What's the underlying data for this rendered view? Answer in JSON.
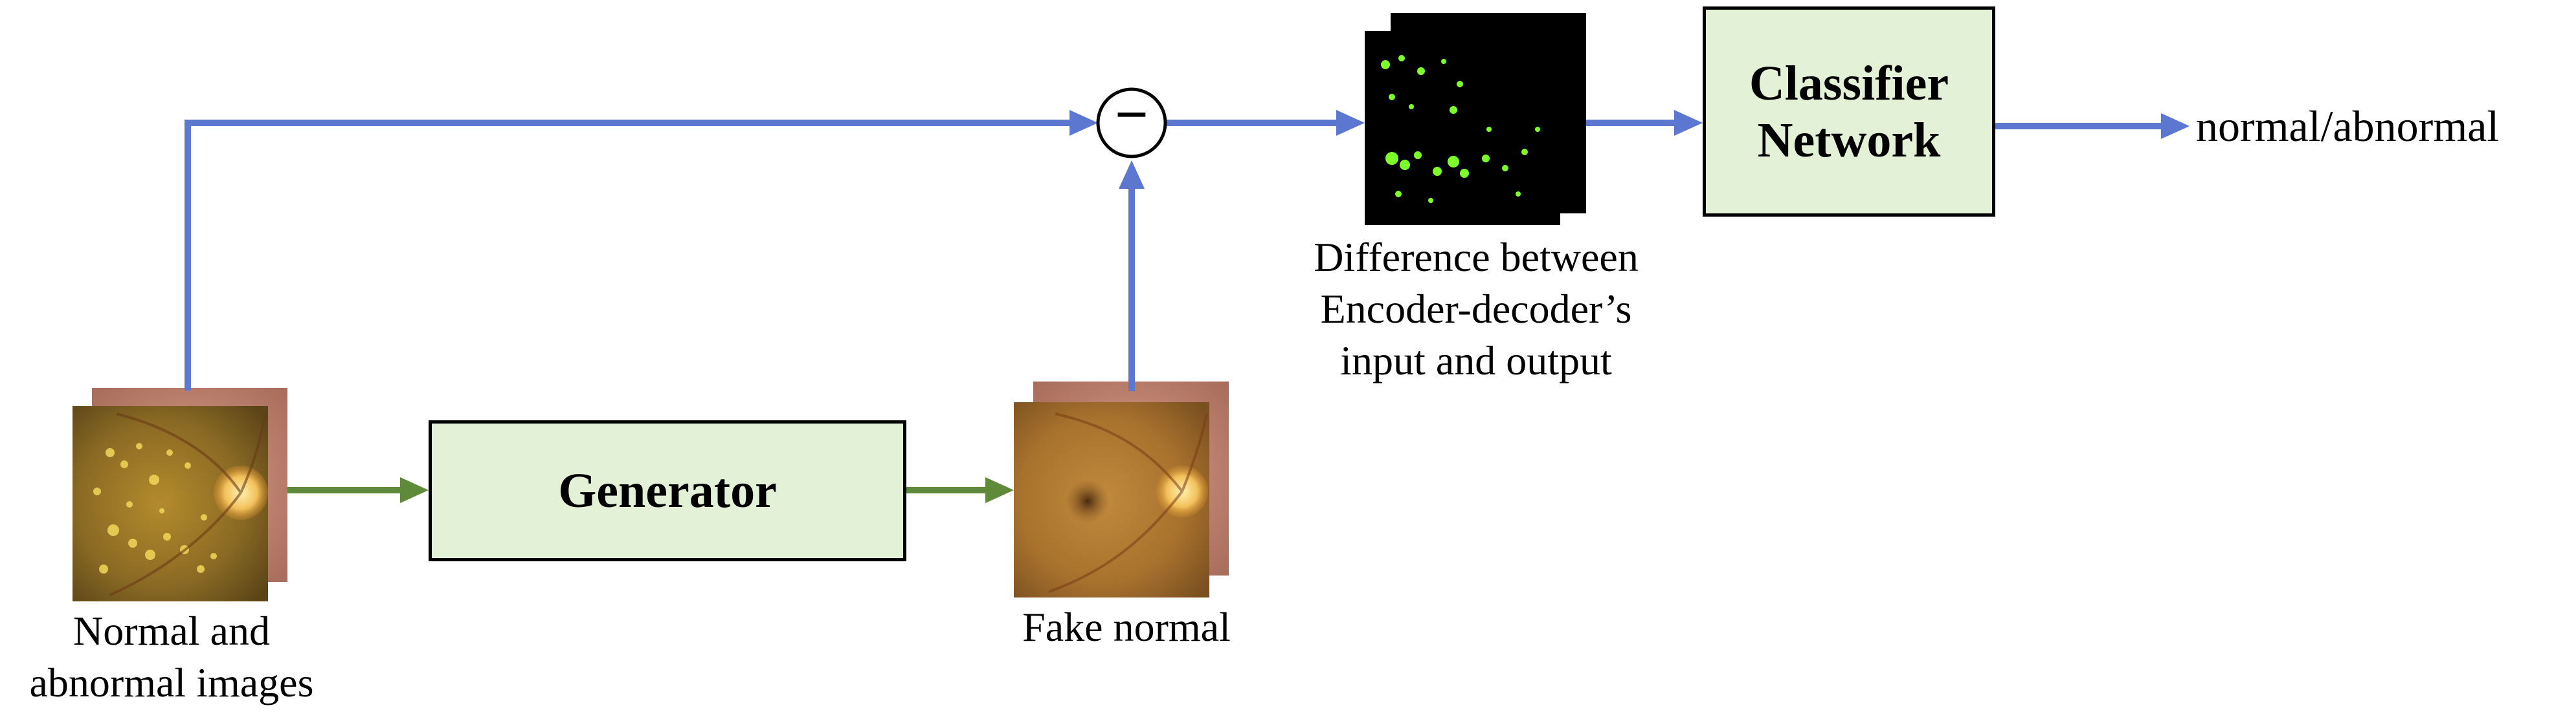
{
  "nodes": {
    "generator": "Generator",
    "classifier_line1": "Classifier",
    "classifier_line2": "Network",
    "subtract_symbol": "−"
  },
  "labels": {
    "input_line1": "Normal and",
    "input_line2": "abnormal images",
    "fake_normal": "Fake normal",
    "difference_line1": "Difference between",
    "difference_line2": "Encoder-decoder’s",
    "difference_line3": "input and output",
    "output": "normal/abnormal"
  },
  "images": {
    "input_stack": "retinal-fundus-images-with-lesions",
    "fake_stack": "reconstructed-normal-retinal-fundus-images",
    "difference_stack": "difference-map-images-green-lesions"
  },
  "colors": {
    "blue_arrow": "#5b77cf",
    "green_arrow": "#5e8a3a",
    "box_fill": "#e3f2d6",
    "lesion_green": "#7dff2a"
  }
}
